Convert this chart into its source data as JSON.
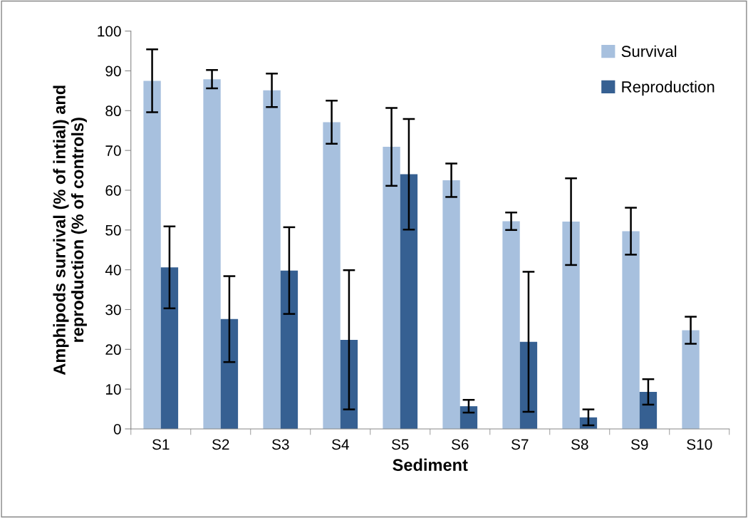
{
  "chart_data": {
    "type": "bar",
    "xlabel": "Sediment",
    "ylabel": "Amphipods survival (% of intial) and\nreproduction (% of controls)",
    "categories": [
      "S1",
      "S2",
      "S3",
      "S4",
      "S5",
      "S6",
      "S7",
      "S8",
      "S9",
      "S10"
    ],
    "series": [
      {
        "name": "Survival",
        "color": "#a7c0de",
        "values": [
          87.5,
          87.9,
          85.1,
          77.1,
          70.9,
          62.5,
          52.2,
          52.1,
          49.7,
          24.8
        ],
        "errors": [
          7.9,
          2.3,
          4.2,
          5.4,
          9.8,
          4.2,
          2.2,
          10.9,
          5.9,
          3.4
        ]
      },
      {
        "name": "Reproduction",
        "color": "#366092",
        "values": [
          40.6,
          27.6,
          39.8,
          22.4,
          64.0,
          5.7,
          21.9,
          2.9,
          9.3,
          null
        ],
        "errors": [
          10.3,
          10.8,
          10.9,
          17.5,
          13.9,
          1.6,
          17.6,
          2.0,
          3.2,
          null
        ]
      }
    ],
    "ylim": [
      0,
      100
    ],
    "yticks": [
      0,
      10,
      20,
      30,
      40,
      50,
      60,
      70,
      80,
      90,
      100
    ],
    "grid": false,
    "legend": "top right"
  }
}
